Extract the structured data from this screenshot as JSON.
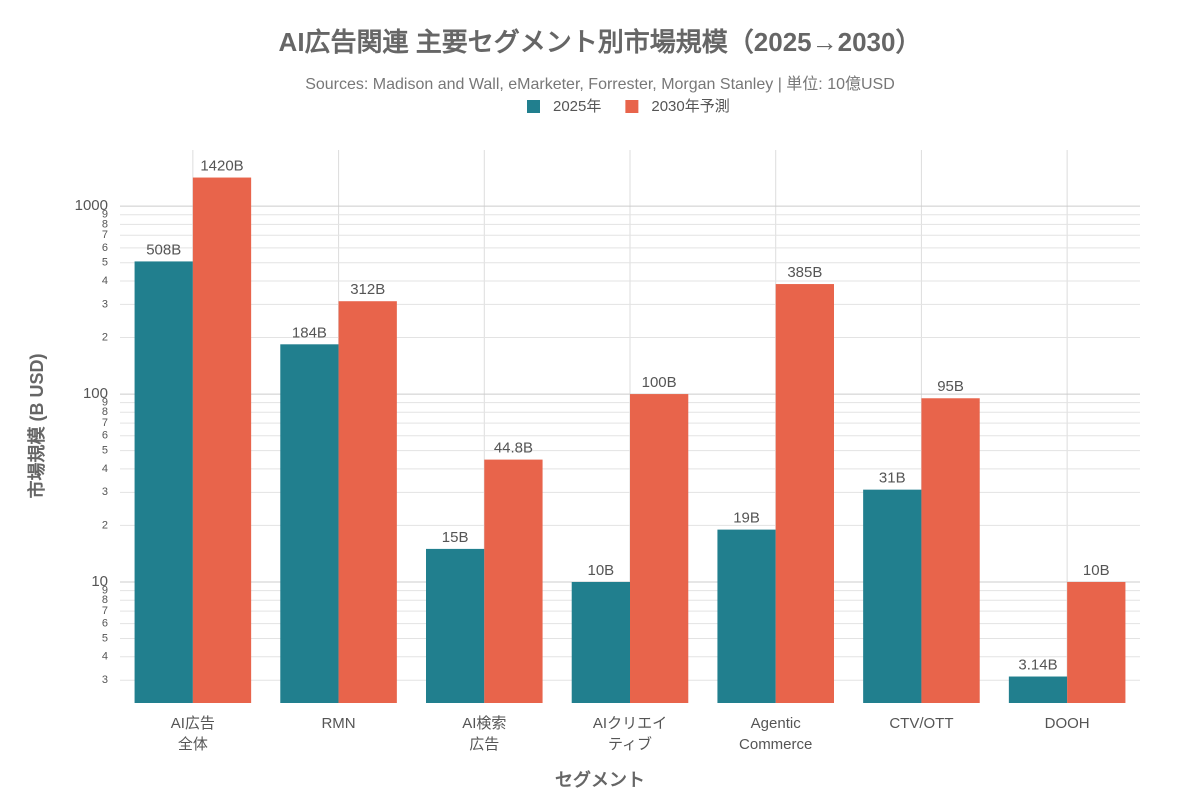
{
  "chart_data": {
    "type": "bar",
    "title": "AI広告関連 主要セグメント別市場規模（2025→2030）",
    "subtitle": "Sources: Madison and Wall, eMarketer, Forrester, Morgan Stanley | 単位: 10億USD",
    "x_label": "セグメント",
    "y_label": "市場規模 (B USD)",
    "categories": [
      "AI広告\n全体",
      "RMN",
      "AI検索\n広告",
      "AIクリエイ\nティブ",
      "Agentic\nCommerce",
      "CTV/OTT",
      "DOOH"
    ],
    "series": [
      {
        "name": "2025年",
        "color": "#217f8e",
        "values": [
          508,
          184,
          15,
          10,
          19,
          31,
          3.14
        ],
        "value_labels": [
          "508B",
          "184B",
          "15B",
          "10B",
          "19B",
          "31B",
          "3.14B"
        ]
      },
      {
        "name": "2030年予測",
        "color": "#e8644b",
        "values": [
          1420,
          312,
          44.8,
          100,
          385,
          95,
          10
        ],
        "value_labels": [
          "1420B",
          "312B",
          "44.8B",
          "100B",
          "385B",
          "95B",
          "10B"
        ]
      }
    ],
    "log_scale": true,
    "ylim": [
      2.27,
      1990
    ],
    "yticks": [
      3,
      4,
      5,
      6,
      7,
      8,
      9,
      10,
      {
        "value": 20,
        "label": "2"
      },
      {
        "value": 30,
        "label": "3"
      },
      {
        "value": 40,
        "label": "4"
      },
      {
        "value": 50,
        "label": "5"
      },
      {
        "value": 60,
        "label": "6"
      },
      {
        "value": 70,
        "label": "7"
      },
      {
        "value": 80,
        "label": "8"
      },
      {
        "value": 90,
        "label": "9"
      },
      100,
      {
        "value": 200,
        "label": "2"
      },
      {
        "value": 300,
        "label": "3"
      },
      {
        "value": 400,
        "label": "4"
      },
      {
        "value": 500,
        "label": "5"
      },
      {
        "value": 600,
        "label": "6"
      },
      {
        "value": 700,
        "label": "7"
      },
      {
        "value": 800,
        "label": "8"
      },
      {
        "value": 900,
        "label": "9"
      },
      1000
    ],
    "grid": true,
    "legend_position": "top"
  }
}
